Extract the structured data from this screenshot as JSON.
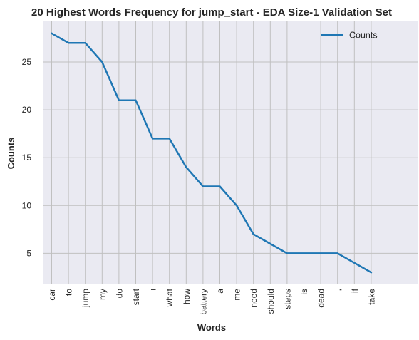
{
  "chart_data": {
    "type": "line",
    "title": "20 Highest Words Frequency for jump_start - EDA Size-1 Validation Set",
    "xlabel": "Words",
    "ylabel": "Counts",
    "categories": [
      "car",
      "to",
      "jump",
      "my",
      "do",
      "start",
      "i",
      "what",
      "how",
      "battery",
      "a",
      "me",
      "need",
      "should",
      "steps",
      "is",
      "dead",
      ",",
      "if",
      "take"
    ],
    "series": [
      {
        "name": "Counts",
        "values": [
          28,
          27,
          27,
          25,
          21,
          21,
          17,
          17,
          14,
          12,
          12,
          10,
          7,
          6,
          5,
          5,
          5,
          5,
          4,
          3
        ],
        "color": "#1f77b4"
      }
    ],
    "ylim": [
      1.75,
      29.25
    ],
    "yticks": [
      5,
      10,
      15,
      20,
      25
    ],
    "grid": true,
    "legend": "upper right",
    "colors": {
      "plot_background": "#eaeaf2",
      "grid": "#c0c0c0"
    }
  }
}
